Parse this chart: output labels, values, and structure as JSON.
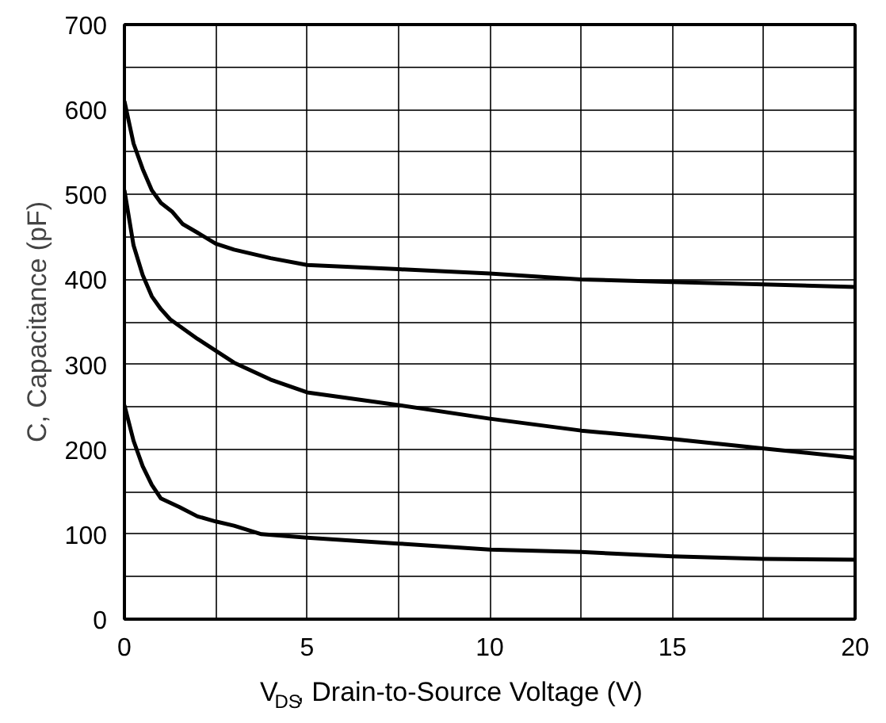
{
  "chart_data": {
    "type": "line",
    "xlabel": "V$_{DS}$, Drain-to-Source Voltage (V)",
    "ylabel": "C, Capacitance (pF)",
    "xlim": [
      0,
      20
    ],
    "ylim": [
      0,
      700
    ],
    "xticks": [
      0,
      {
        "value": 2.5,
        "label": null
      },
      5,
      {
        "value": 7.5,
        "label": null
      },
      10,
      {
        "value": 12.5,
        "label": null
      },
      15,
      {
        "value": 17.5,
        "label": null
      },
      20
    ],
    "yticks": [
      0,
      {
        "value": 50,
        "label": null
      },
      100,
      {
        "value": 150,
        "label": null
      },
      200,
      {
        "value": 250,
        "label": null
      },
      300,
      {
        "value": 350,
        "label": null
      },
      400,
      {
        "value": 450,
        "label": null
      },
      500,
      {
        "value": 550,
        "label": null
      },
      600,
      {
        "value": 650,
        "label": null
      },
      700
    ],
    "grid": true,
    "marker": "none",
    "line_style": "solid",
    "series": [
      {
        "color": "#000000",
        "x": [
          0,
          0.25,
          0.5,
          0.75,
          1,
          1.3,
          1.6,
          2,
          2.5,
          3,
          4,
          5,
          7.5,
          10,
          12.5,
          15,
          17.5,
          20
        ],
        "values": [
          610,
          560,
          530,
          505,
          490,
          480,
          465,
          455,
          442,
          435,
          425,
          417,
          412,
          407,
          400,
          397,
          394,
          391
        ]
      },
      {
        "color": "#000000",
        "x": [
          0,
          0.25,
          0.5,
          0.75,
          1,
          1.25,
          2,
          3,
          4,
          5,
          7.5,
          10,
          12.5,
          15,
          17.5,
          20
        ],
        "values": [
          505,
          440,
          405,
          380,
          365,
          353,
          330,
          302,
          282,
          267,
          252,
          236,
          222,
          212,
          201,
          190
        ]
      },
      {
        "color": "#000000",
        "x": [
          0,
          0.25,
          0.5,
          0.75,
          1,
          1.5,
          2,
          2.5,
          3,
          3.75,
          5,
          7.5,
          10,
          12.5,
          15,
          17.5,
          20
        ],
        "values": [
          252,
          210,
          180,
          158,
          142,
          132,
          121,
          115,
          110,
          100,
          96,
          89,
          82,
          79,
          74,
          71,
          70
        ]
      }
    ]
  }
}
